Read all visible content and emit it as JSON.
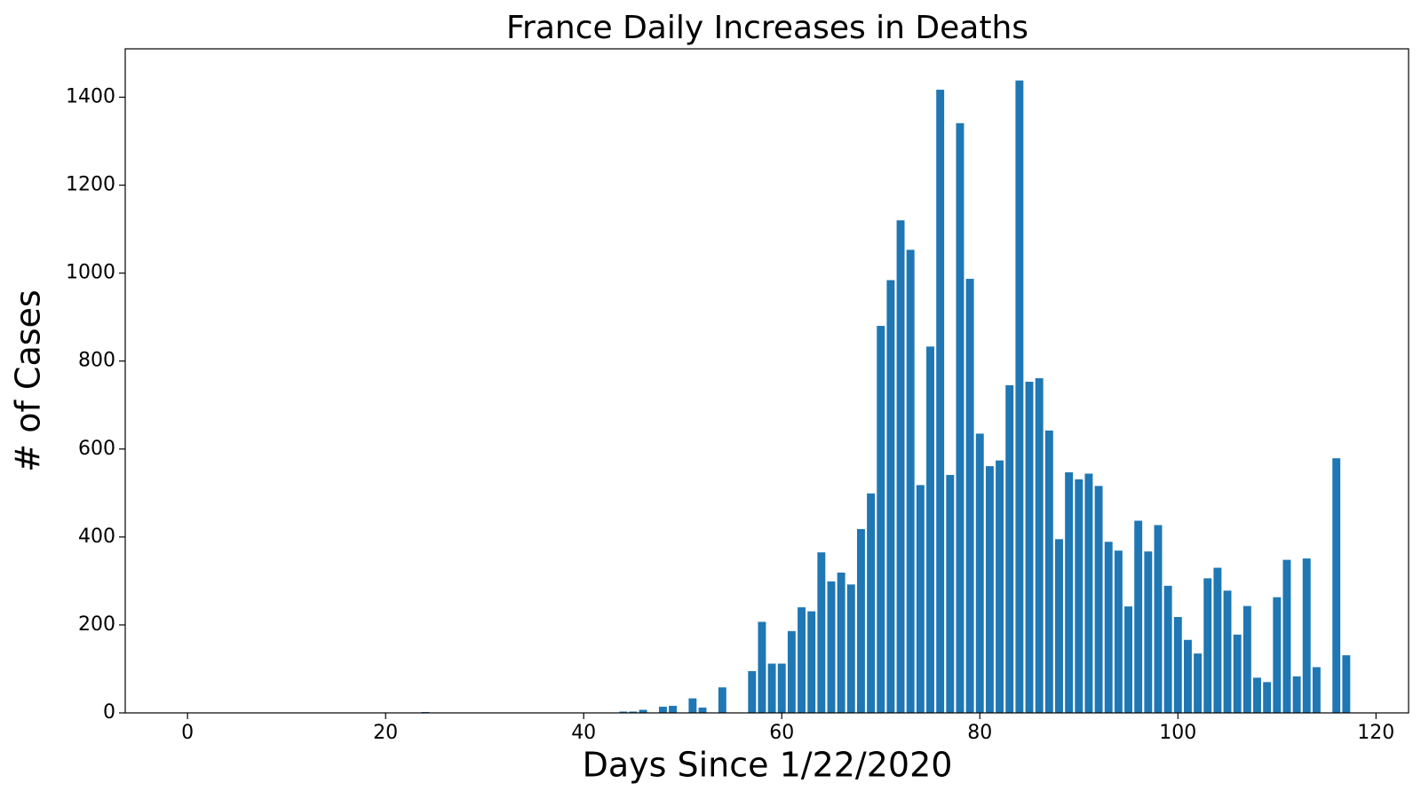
{
  "chart_data": {
    "type": "bar",
    "title": "France Daily Increases in Deaths",
    "x_label": "Days Since 1/22/2020",
    "y_label": "# of Cases",
    "color": "#1f77b4",
    "x": [
      0,
      1,
      2,
      3,
      4,
      5,
      6,
      7,
      8,
      9,
      10,
      11,
      12,
      13,
      14,
      15,
      16,
      17,
      18,
      19,
      20,
      21,
      22,
      23,
      24,
      25,
      26,
      27,
      28,
      29,
      30,
      31,
      32,
      33,
      34,
      35,
      36,
      37,
      38,
      39,
      40,
      41,
      42,
      43,
      44,
      45,
      46,
      47,
      48,
      49,
      50,
      51,
      52,
      53,
      54,
      55,
      56,
      57,
      58,
      59,
      60,
      61,
      62,
      63,
      64,
      65,
      66,
      67,
      68,
      69,
      70,
      71,
      72,
      73,
      74,
      75,
      76,
      77,
      78,
      79,
      80,
      81,
      82,
      83,
      84,
      85,
      86,
      87,
      88,
      89,
      90,
      91,
      92,
      93,
      94,
      95,
      96,
      97,
      98,
      99,
      100,
      101,
      102,
      103,
      104,
      105,
      106,
      107,
      108,
      109,
      110,
      111,
      112,
      113,
      114,
      115,
      116,
      117
    ],
    "values": [
      0,
      0,
      0,
      0,
      0,
      0,
      0,
      0,
      0,
      0,
      0,
      0,
      0,
      0,
      0,
      0,
      0,
      0,
      0,
      0,
      0,
      0,
      0,
      0,
      2,
      0,
      0,
      0,
      0,
      0,
      0,
      0,
      0,
      0,
      0,
      1,
      0,
      0,
      0,
      0,
      1,
      1,
      0,
      1,
      3,
      3,
      7,
      0,
      14,
      16,
      0,
      33,
      12,
      0,
      58,
      0,
      0,
      95,
      207,
      112,
      112,
      186,
      240,
      231,
      365,
      299,
      319,
      292,
      418,
      499,
      880,
      984,
      1120,
      1053,
      518,
      833,
      1417,
      541,
      1341,
      987,
      635,
      561,
      574,
      745,
      1438,
      753,
      761,
      642,
      395,
      547,
      531,
      544,
      516,
      389,
      369,
      242,
      437,
      367,
      427,
      289,
      218,
      166,
      135,
      306,
      330,
      278,
      178,
      243,
      80,
      70,
      263,
      348,
      83,
      351,
      104,
      0,
      579,
      131
    ],
    "xlim": [
      -6.29,
      123.29
    ],
    "ylim": [
      0,
      1510
    ],
    "xticks": [
      0,
      20,
      40,
      60,
      80,
      100,
      120
    ],
    "yticks": [
      0,
      200,
      400,
      600,
      800,
      1000,
      1200,
      1400
    ]
  }
}
